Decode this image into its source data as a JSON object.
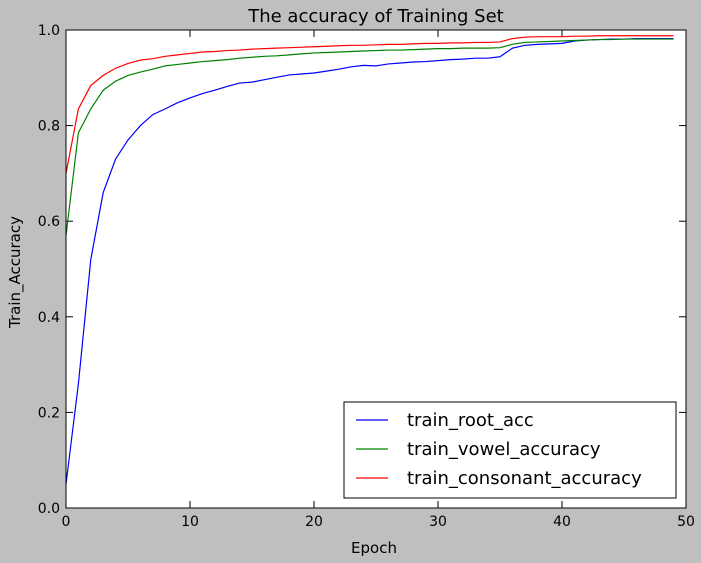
{
  "chart_data": {
    "type": "line",
    "title": "The accuracy of Training Set",
    "xlabel": "Epoch",
    "ylabel": "Train_Accuracy",
    "xlim": [
      0,
      50
    ],
    "ylim": [
      0.0,
      1.0
    ],
    "xticks": [
      "0",
      "10",
      "20",
      "30",
      "40",
      "50"
    ],
    "yticks": [
      "0.0",
      "0.2",
      "0.4",
      "0.6",
      "0.8",
      "1.0"
    ],
    "grid": false,
    "legend_position": "lower-right",
    "x": [
      0,
      1,
      2,
      3,
      4,
      5,
      6,
      7,
      8,
      9,
      10,
      11,
      12,
      13,
      14,
      15,
      16,
      17,
      18,
      19,
      20,
      21,
      22,
      23,
      24,
      25,
      26,
      27,
      28,
      29,
      30,
      31,
      32,
      33,
      34,
      35,
      36,
      37,
      38,
      39,
      40,
      41,
      42,
      43,
      44,
      45,
      46,
      47,
      48,
      49
    ],
    "series": [
      {
        "name": "train_root_acc",
        "color": "#0000ff",
        "values": [
          0.05,
          0.26,
          0.52,
          0.66,
          0.73,
          0.77,
          0.8,
          0.823,
          0.835,
          0.848,
          0.858,
          0.867,
          0.874,
          0.882,
          0.889,
          0.891,
          0.896,
          0.901,
          0.906,
          0.908,
          0.91,
          0.914,
          0.918,
          0.923,
          0.926,
          0.925,
          0.929,
          0.931,
          0.933,
          0.934,
          0.936,
          0.938,
          0.939,
          0.941,
          0.941,
          0.944,
          0.962,
          0.968,
          0.97,
          0.971,
          0.972,
          0.977,
          0.979,
          0.98,
          0.981,
          0.981,
          0.982,
          0.982,
          0.982,
          0.982
        ]
      },
      {
        "name": "train_vowel_accuracy",
        "color": "#008000",
        "values": [
          0.57,
          0.785,
          0.835,
          0.874,
          0.893,
          0.905,
          0.912,
          0.918,
          0.925,
          0.928,
          0.931,
          0.934,
          0.936,
          0.938,
          0.941,
          0.943,
          0.945,
          0.946,
          0.948,
          0.95,
          0.952,
          0.953,
          0.954,
          0.955,
          0.956,
          0.957,
          0.958,
          0.958,
          0.959,
          0.96,
          0.961,
          0.961,
          0.962,
          0.962,
          0.962,
          0.963,
          0.97,
          0.974,
          0.975,
          0.976,
          0.977,
          0.978,
          0.979,
          0.98,
          0.98,
          0.981,
          0.981,
          0.981,
          0.981,
          0.981
        ]
      },
      {
        "name": "train_consonant_accuracy",
        "color": "#ff0000",
        "values": [
          0.7,
          0.835,
          0.884,
          0.905,
          0.92,
          0.93,
          0.937,
          0.94,
          0.945,
          0.948,
          0.951,
          0.954,
          0.955,
          0.957,
          0.958,
          0.96,
          0.961,
          0.962,
          0.963,
          0.964,
          0.965,
          0.966,
          0.967,
          0.968,
          0.968,
          0.969,
          0.97,
          0.97,
          0.971,
          0.972,
          0.972,
          0.973,
          0.973,
          0.974,
          0.974,
          0.975,
          0.982,
          0.985,
          0.986,
          0.986,
          0.986,
          0.987,
          0.987,
          0.988,
          0.988,
          0.988,
          0.988,
          0.988,
          0.988,
          0.988
        ]
      }
    ]
  }
}
